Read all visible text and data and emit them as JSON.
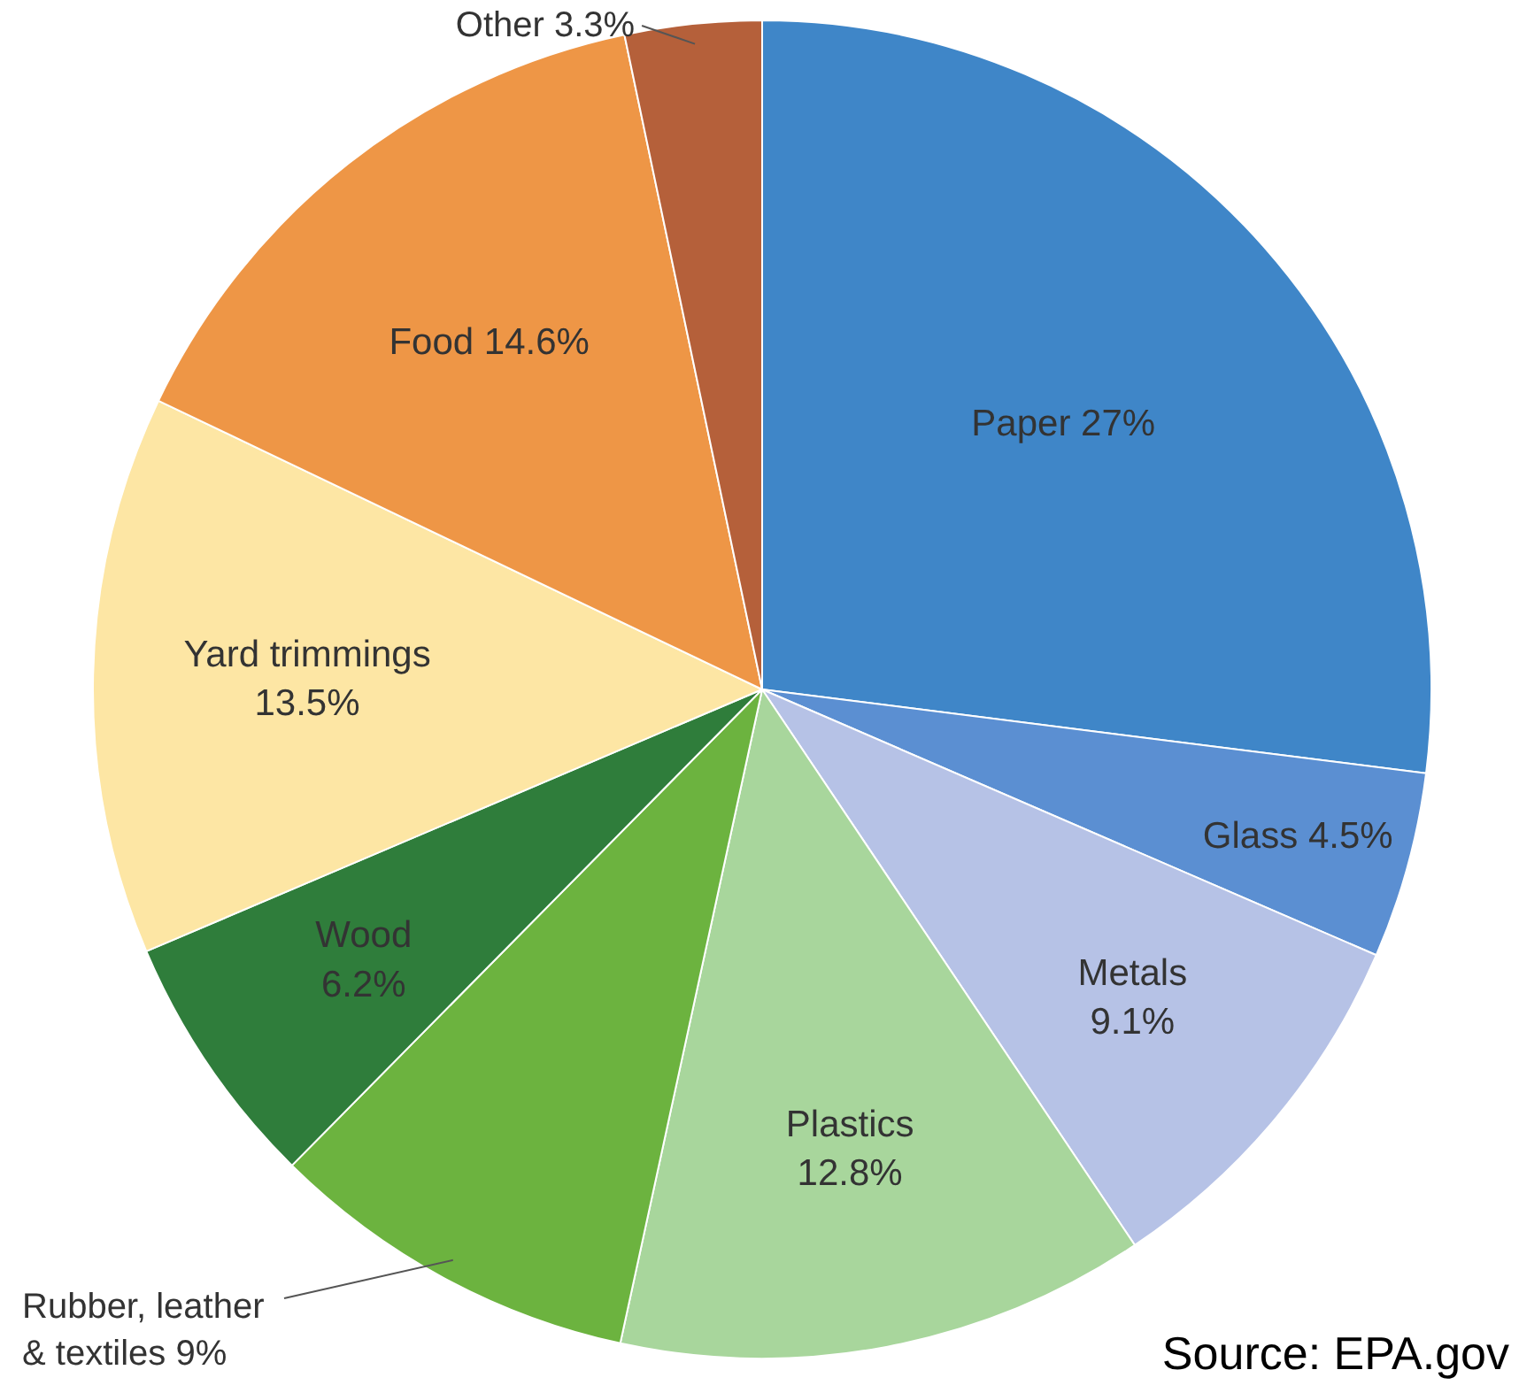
{
  "chart_data": {
    "type": "pie",
    "categories": [
      "Paper",
      "Glass",
      "Metals",
      "Plastics",
      "Rubber, leather\n& textiles",
      "Wood",
      "Yard trimmings",
      "Food",
      "Other"
    ],
    "values": [
      27,
      4.5,
      9.1,
      12.8,
      9,
      6.2,
      13.5,
      14.6,
      3.3
    ],
    "value_labels": [
      "27%",
      "4.5%",
      "9.1%",
      "12.8%",
      "9%",
      "6.2%",
      "13.5%",
      "14.6%",
      "3.3%"
    ],
    "colors": [
      "#3f86c8",
      "#5b8fd2",
      "#b6c2e6",
      "#a8d69c",
      "#6cb33f",
      "#2f7d3b",
      "#fde6a4",
      "#ee9646",
      "#b5603a"
    ],
    "annotations": [
      "Source: EPA.gov"
    ]
  }
}
